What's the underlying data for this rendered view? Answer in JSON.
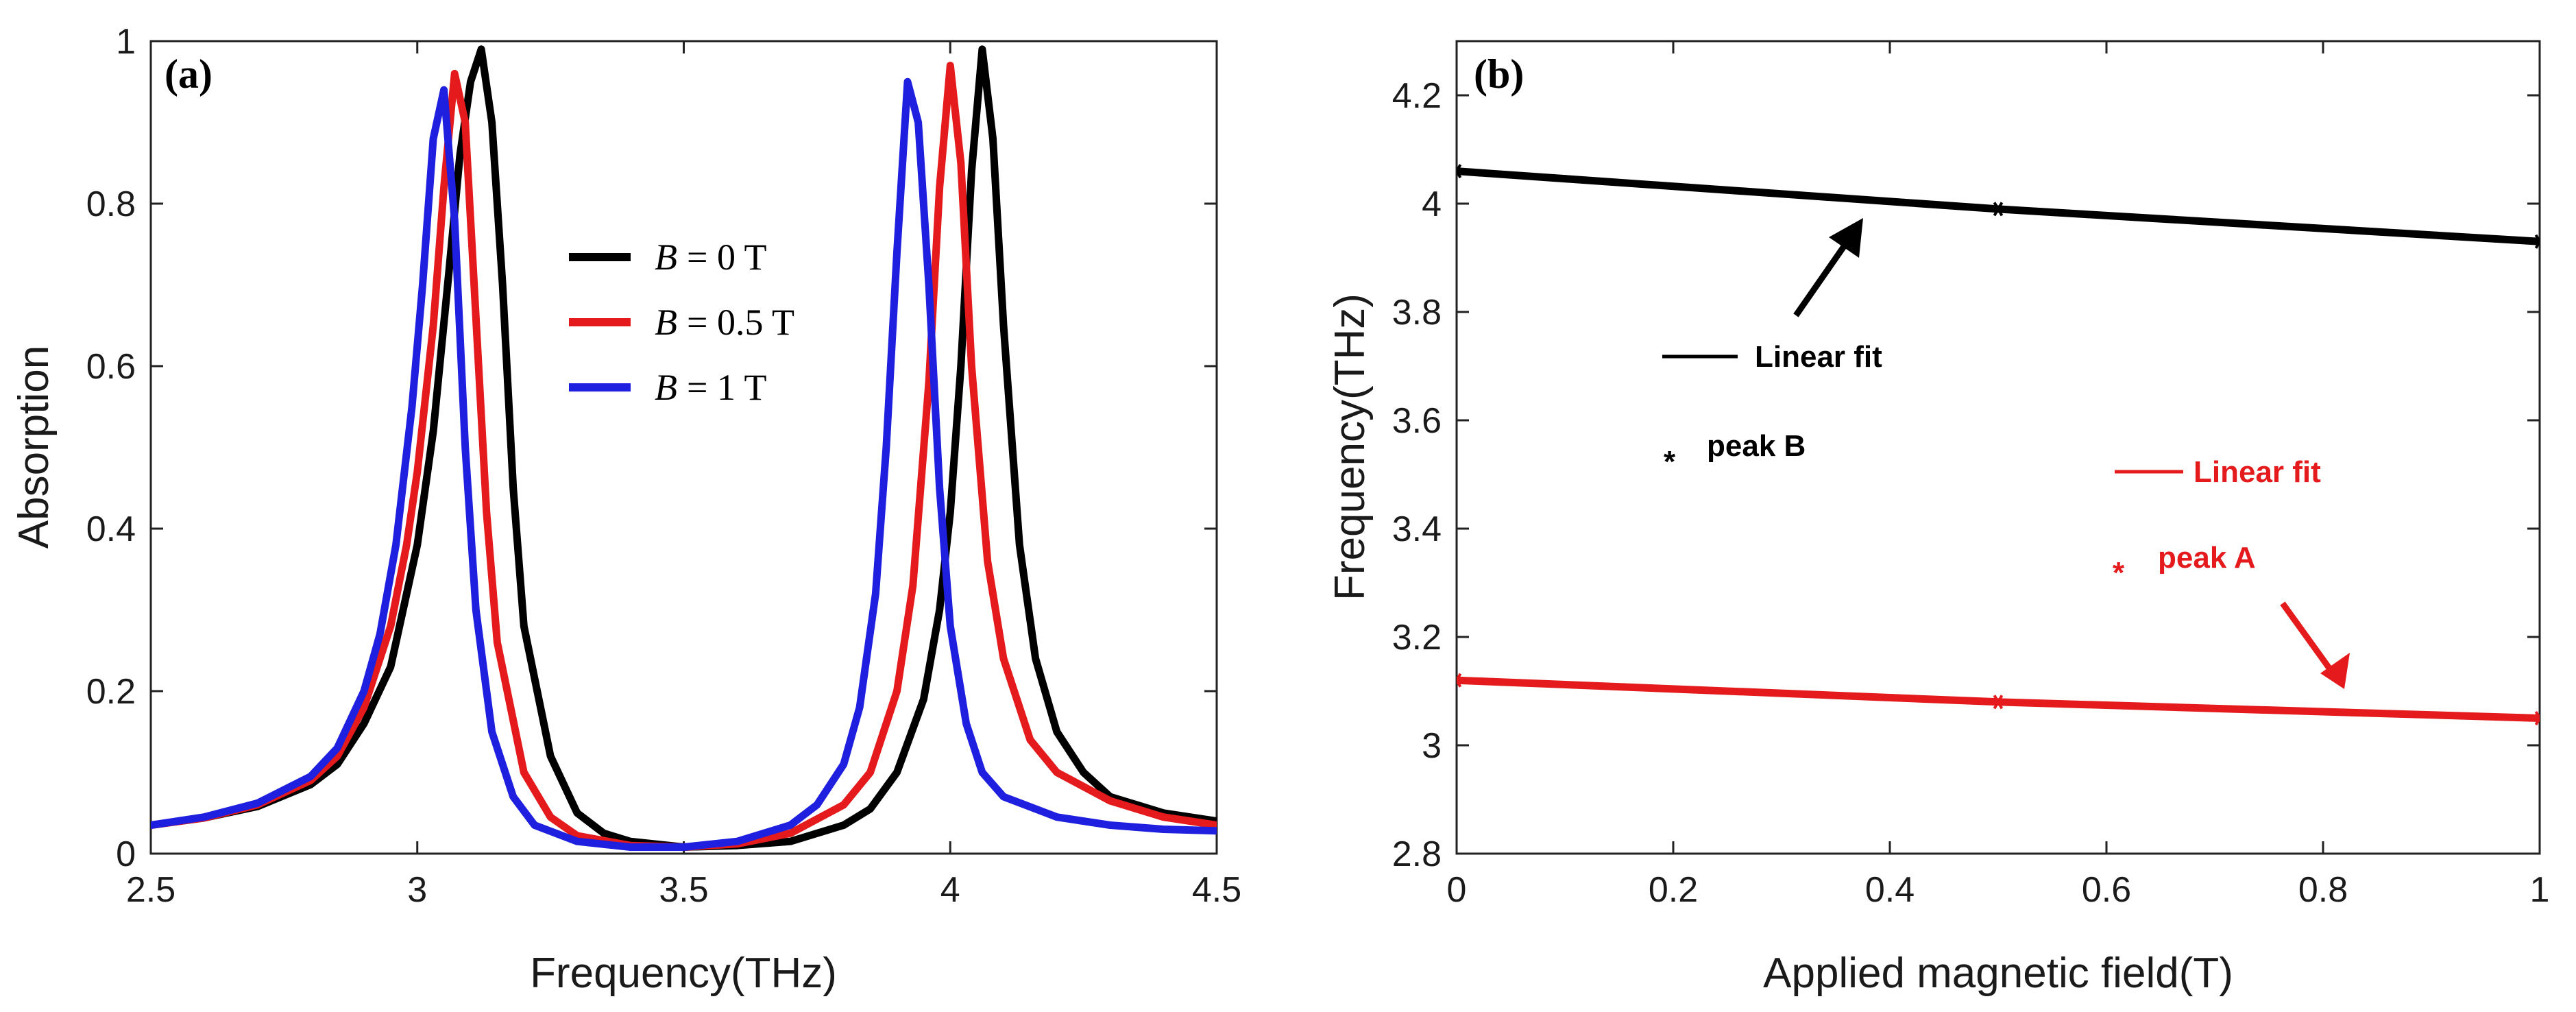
{
  "chart_data": [
    {
      "type": "line",
      "panel_label": "(a)",
      "xlabel": "Frequency(THz)",
      "ylabel": "Absorption",
      "xlim": [
        2.5,
        4.5
      ],
      "ylim": [
        0,
        1
      ],
      "xticks": [
        2.5,
        3,
        3.5,
        4,
        4.5
      ],
      "xtick_labels": [
        "2.5",
        "3",
        "3.5",
        "4",
        "4.5"
      ],
      "yticks": [
        0,
        0.2,
        0.4,
        0.6,
        0.8,
        1
      ],
      "ytick_labels": [
        "0",
        "0.2",
        "0.4",
        "0.6",
        "0.8",
        "1"
      ],
      "legend_position": "center",
      "series": [
        {
          "name": "B = 0 T",
          "legend_var": "B",
          "legend_rest": "= 0 T",
          "color": "#000000",
          "x": [
            2.5,
            2.6,
            2.7,
            2.8,
            2.85,
            2.9,
            2.95,
            3.0,
            3.03,
            3.06,
            3.08,
            3.1,
            3.12,
            3.14,
            3.16,
            3.18,
            3.2,
            3.25,
            3.3,
            3.35,
            3.4,
            3.5,
            3.6,
            3.7,
            3.8,
            3.85,
            3.9,
            3.95,
            3.98,
            4.0,
            4.02,
            4.04,
            4.06,
            4.08,
            4.1,
            4.13,
            4.16,
            4.2,
            4.25,
            4.3,
            4.4,
            4.5
          ],
          "y": [
            0.035,
            0.044,
            0.058,
            0.085,
            0.11,
            0.16,
            0.23,
            0.38,
            0.52,
            0.72,
            0.86,
            0.95,
            0.99,
            0.9,
            0.7,
            0.45,
            0.28,
            0.12,
            0.05,
            0.025,
            0.015,
            0.008,
            0.01,
            0.015,
            0.035,
            0.055,
            0.1,
            0.19,
            0.3,
            0.42,
            0.6,
            0.84,
            0.99,
            0.88,
            0.65,
            0.38,
            0.24,
            0.15,
            0.1,
            0.07,
            0.05,
            0.04
          ]
        },
        {
          "name": "B = 0.5 T",
          "legend_var": "B",
          "legend_rest": "= 0.5 T",
          "color": "#e41a1c",
          "x": [
            2.5,
            2.6,
            2.7,
            2.8,
            2.85,
            2.9,
            2.95,
            2.98,
            3.0,
            3.03,
            3.05,
            3.07,
            3.09,
            3.11,
            3.13,
            3.15,
            3.2,
            3.25,
            3.3,
            3.4,
            3.5,
            3.6,
            3.7,
            3.8,
            3.85,
            3.9,
            3.93,
            3.96,
            3.98,
            4.0,
            4.02,
            4.04,
            4.07,
            4.1,
            4.15,
            4.2,
            4.3,
            4.4,
            4.5
          ],
          "y": [
            0.035,
            0.044,
            0.06,
            0.09,
            0.12,
            0.18,
            0.28,
            0.38,
            0.47,
            0.65,
            0.82,
            0.96,
            0.9,
            0.66,
            0.42,
            0.26,
            0.1,
            0.045,
            0.022,
            0.01,
            0.008,
            0.012,
            0.025,
            0.06,
            0.1,
            0.2,
            0.33,
            0.58,
            0.82,
            0.97,
            0.85,
            0.6,
            0.36,
            0.24,
            0.14,
            0.1,
            0.065,
            0.045,
            0.035
          ]
        },
        {
          "name": "B = 1 T",
          "legend_var": "B",
          "legend_rest": "= 1 T",
          "color": "#1f1fe0",
          "x": [
            2.5,
            2.6,
            2.7,
            2.8,
            2.85,
            2.9,
            2.93,
            2.96,
            2.99,
            3.01,
            3.03,
            3.05,
            3.07,
            3.09,
            3.11,
            3.14,
            3.18,
            3.22,
            3.3,
            3.4,
            3.5,
            3.6,
            3.7,
            3.75,
            3.8,
            3.83,
            3.86,
            3.88,
            3.9,
            3.92,
            3.94,
            3.96,
            3.98,
            4.0,
            4.03,
            4.06,
            4.1,
            4.2,
            4.3,
            4.4,
            4.5
          ],
          "y": [
            0.035,
            0.045,
            0.062,
            0.095,
            0.13,
            0.2,
            0.27,
            0.38,
            0.55,
            0.7,
            0.88,
            0.94,
            0.78,
            0.5,
            0.3,
            0.15,
            0.07,
            0.035,
            0.015,
            0.008,
            0.008,
            0.015,
            0.035,
            0.06,
            0.11,
            0.18,
            0.32,
            0.5,
            0.74,
            0.95,
            0.9,
            0.7,
            0.45,
            0.28,
            0.16,
            0.1,
            0.07,
            0.045,
            0.035,
            0.03,
            0.028
          ]
        }
      ]
    },
    {
      "type": "line",
      "panel_label": "(b)",
      "xlabel": "Applied magnetic field(T)",
      "ylabel": "Frequency(THz)",
      "xlim": [
        0,
        1
      ],
      "ylim": [
        2.8,
        4.3
      ],
      "xticks": [
        0,
        0.2,
        0.4,
        0.6,
        0.8,
        1
      ],
      "xtick_labels": [
        "0",
        "0.2",
        "0.4",
        "0.6",
        "0.8",
        "1"
      ],
      "yticks": [
        2.8,
        3,
        3.2,
        3.4,
        3.6,
        3.8,
        4,
        4.2
      ],
      "ytick_labels": [
        "2.8",
        "3",
        "3.2",
        "3.4",
        "3.6",
        "3.8",
        "4",
        "4.2"
      ],
      "series": [
        {
          "name": "peak B",
          "color": "#000000",
          "x": [
            0,
            0.5,
            1
          ],
          "y": [
            4.06,
            3.99,
            3.93
          ]
        },
        {
          "name": "peak A",
          "color": "#e41a1c",
          "x": [
            0,
            0.5,
            1
          ],
          "y": [
            3.12,
            3.08,
            3.05
          ]
        }
      ],
      "legend": {
        "black_fit": "Linear fit",
        "black_points": "peak B",
        "red_fit": "Linear fit",
        "red_points": "peak A",
        "star": "*"
      }
    }
  ]
}
